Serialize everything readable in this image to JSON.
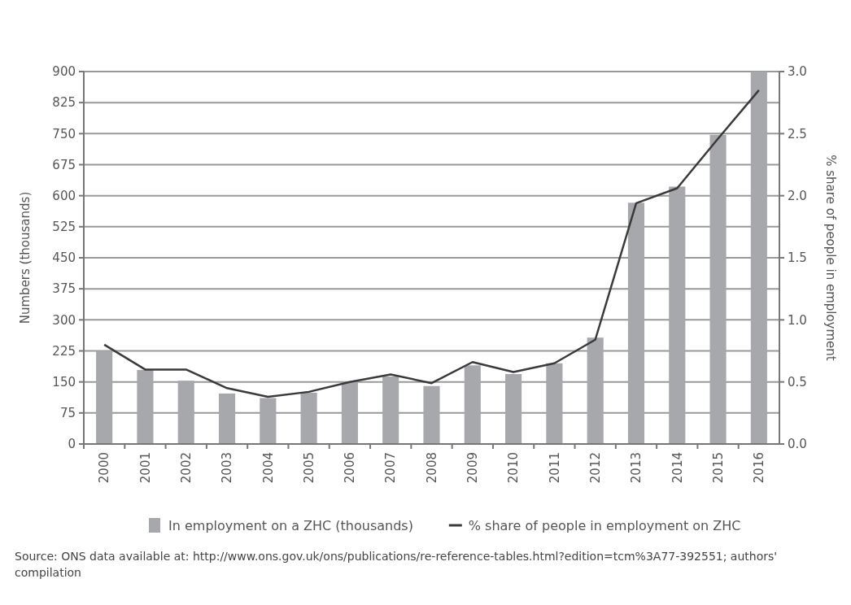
{
  "chart_data": {
    "type": "bar",
    "categories": [
      "2000",
      "2001",
      "2002",
      "2003",
      "2004",
      "2005",
      "2006",
      "2007",
      "2008",
      "2009",
      "2010",
      "2011",
      "2012",
      "2013",
      "2014",
      "2015",
      "2016"
    ],
    "series": [
      {
        "name": "In employment on a ZHC (thousands)",
        "color": "#a7a8ab",
        "values": [
          225,
          179,
          153,
          122,
          111,
          124,
          150,
          163,
          140,
          190,
          169,
          195,
          257,
          583,
          622,
          747,
          900
        ]
      },
      {
        "name": "% share of people in employment on ZHC",
        "type": "line",
        "axis": "y2",
        "color": "#3a3a3a",
        "values": [
          0.8,
          0.6,
          0.6,
          0.45,
          0.38,
          0.42,
          0.5,
          0.56,
          0.49,
          0.66,
          0.58,
          0.65,
          0.84,
          1.94,
          2.06,
          2.46,
          2.85
        ]
      }
    ],
    "ylabel": "Numbers (thousands)",
    "y2label": "% share of people in employment",
    "ylim": [
      0,
      900
    ],
    "yticks": [
      0,
      75,
      150,
      225,
      300,
      375,
      450,
      525,
      600,
      675,
      750,
      825,
      900
    ],
    "y2lim": [
      0,
      3
    ],
    "y2ticks": [
      {
        "value": 0,
        "label": "0.0"
      },
      {
        "value": 0.5,
        "label": "0.5"
      },
      {
        "value": 1,
        "label": "1.0"
      },
      {
        "value": 1.5,
        "label": "1.5"
      },
      {
        "value": 2,
        "label": "2.0"
      },
      {
        "value": 2.5,
        "label": "2.5"
      },
      {
        "value": 3,
        "label": "3.0"
      }
    ],
    "grid": "y",
    "legend": "bottom",
    "annotations": [
      "Source: ONS data available at: http://www.ons.gov.uk/ons/publications/re-reference-tables.html?edition=tcm%3A77-392551; authors' compilation"
    ]
  }
}
